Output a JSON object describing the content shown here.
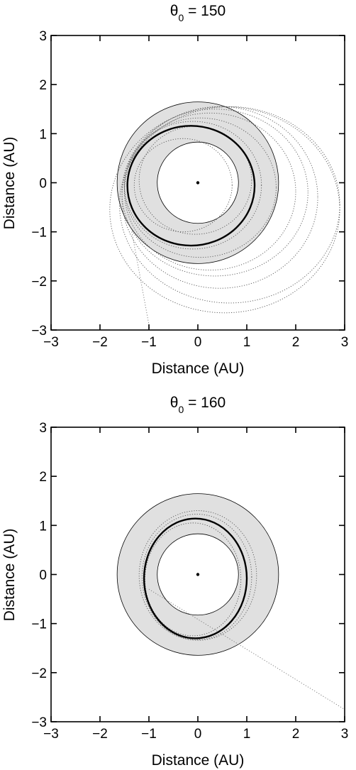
{
  "chart_data": [
    {
      "type": "scatter",
      "title_symbol": "θ",
      "title_subscript": "0",
      "title_rest": " = 150",
      "xlabel": "Distance (AU)",
      "ylabel": "Distance (AU)",
      "xlim": [
        -3,
        3
      ],
      "ylim": [
        -3,
        3
      ],
      "xticks": [
        "−3",
        "−2",
        "−1",
        "0",
        "1",
        "2",
        "3"
      ],
      "yticks": [
        "3",
        "2",
        "1",
        "0",
        "−1",
        "−2",
        "−3"
      ],
      "grid": false,
      "annulus": {
        "center": [
          0,
          0
        ],
        "inner_radius": 0.83,
        "outer_radius": 1.65,
        "fill": "#e0e0e0"
      },
      "central_body": {
        "x": 0,
        "y": 0
      },
      "main_orbit": {
        "center": [
          -0.14,
          -0.06
        ],
        "rx": 1.3,
        "ry": 1.22
      },
      "dotted_orbits": [
        {
          "cx": -0.1,
          "cy": -0.05,
          "rx": 1.4,
          "ry": 1.3
        },
        {
          "cx": 0.05,
          "cy": -0.1,
          "rx": 1.55,
          "ry": 1.42
        },
        {
          "cx": 0.25,
          "cy": -0.18,
          "rx": 1.75,
          "ry": 1.6
        },
        {
          "cx": 0.45,
          "cy": -0.3,
          "rx": 2.0,
          "ry": 1.85
        },
        {
          "cx": 0.65,
          "cy": -0.45,
          "rx": 2.25,
          "ry": 2.0
        },
        {
          "cx": 0.55,
          "cy": -0.55,
          "rx": 2.35,
          "ry": 2.1
        },
        {
          "cx": 0.35,
          "cy": -0.2,
          "rx": 1.9,
          "ry": 1.7
        },
        {
          "cx": -0.05,
          "cy": 0.05,
          "rx": 1.15,
          "ry": 1.1
        },
        {
          "cx": -0.3,
          "cy": -0.05,
          "rx": 1.0,
          "ry": 0.95
        }
      ],
      "escape_path": [
        [
          -1.35,
          -1.0
        ],
        [
          -0.98,
          -3.0
        ]
      ]
    },
    {
      "type": "scatter",
      "title_symbol": "θ",
      "title_subscript": "0",
      "title_rest": " = 160",
      "xlabel": "Distance (AU)",
      "ylabel": "Distance (AU)",
      "xlim": [
        -3,
        3
      ],
      "ylim": [
        -3,
        3
      ],
      "xticks": [
        "−3",
        "−2",
        "−1",
        "0",
        "1",
        "2",
        "3"
      ],
      "yticks": [
        "3",
        "2",
        "1",
        "0",
        "−1",
        "−2",
        "−3"
      ],
      "grid": false,
      "annulus": {
        "center": [
          0,
          0
        ],
        "inner_radius": 0.83,
        "outer_radius": 1.65,
        "fill": "#e0e0e0"
      },
      "central_body": {
        "x": 0,
        "y": 0
      },
      "main_orbit": {
        "center": [
          -0.05,
          -0.08
        ],
        "rx": 1.05,
        "ry": 1.22
      },
      "dotted_orbits": [
        {
          "cx": -0.02,
          "cy": -0.05,
          "rx": 1.12,
          "ry": 1.28
        },
        {
          "cx": 0.0,
          "cy": -0.02,
          "rx": 1.2,
          "ry": 1.32
        },
        {
          "cx": -0.1,
          "cy": -0.1,
          "rx": 0.98,
          "ry": 1.15
        }
      ],
      "escape_path": [
        [
          -1.0,
          -0.3
        ],
        [
          3.0,
          -2.75
        ]
      ]
    }
  ]
}
